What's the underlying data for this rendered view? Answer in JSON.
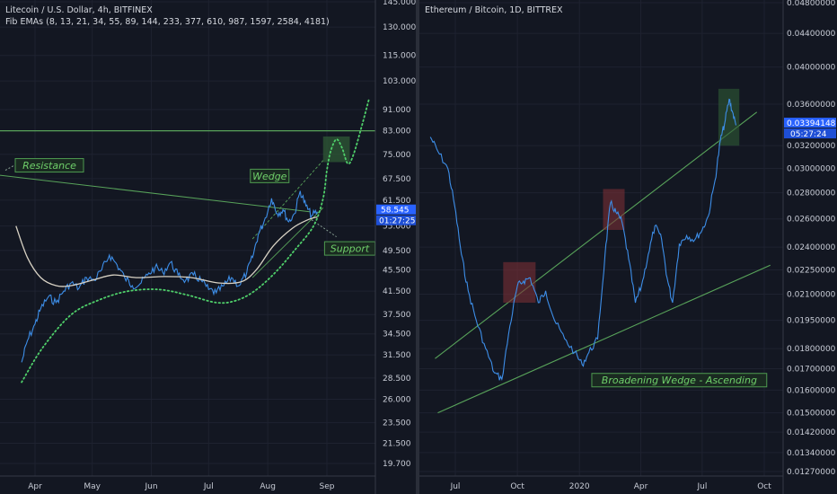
{
  "chart_data": [
    {
      "type": "line",
      "title": "Litecoin / U.S. Dollar, 4h, BITFINEX",
      "subtitle": "Fib EMAs (8, 13, 21, 34, 55, 89, 144, 233, 377, 610, 987, 1597, 2584, 4181)",
      "x_ticks": [
        "Apr",
        "May",
        "Jun",
        "Jul",
        "Aug",
        "Sep"
      ],
      "y_ticks": [
        "145.000",
        "130.000",
        "115.000",
        "103.000",
        "91.000",
        "83.000",
        "75.000",
        "67.500",
        "61.500",
        "55.000",
        "49.500",
        "45.500",
        "41.500",
        "37.500",
        "34.500",
        "31.500",
        "28.500",
        "26.000",
        "23.500",
        "21.500",
        "19.700"
      ],
      "y_scale": "log",
      "price_tag": {
        "value": "58.545",
        "countdown": "01:27:25"
      },
      "annotations": [
        "Resistance",
        "Wedge",
        "Support"
      ],
      "series": [
        {
          "type": "price",
          "color": "#3d8ee8",
          "points": [
            [
              "Mar 25",
              30.5
            ],
            [
              "Mar 28",
              33.5
            ],
            [
              "Apr 1",
              36
            ],
            [
              "Apr 4",
              38.5
            ],
            [
              "Apr 8",
              40.5
            ],
            [
              "Apr 12",
              39.5
            ],
            [
              "Apr 16",
              41.5
            ],
            [
              "Apr 20",
              43
            ],
            [
              "Apr 24",
              42
            ],
            [
              "Apr 28",
              44
            ],
            [
              "May 2",
              43.5
            ],
            [
              "May 6",
              45.5
            ],
            [
              "May 10",
              48.5
            ],
            [
              "May 14",
              46.5
            ],
            [
              "May 18",
              44
            ],
            [
              "May 22",
              42.5
            ],
            [
              "May 26",
              42.8
            ],
            [
              "May 30",
              44.5
            ],
            [
              "Jun 3",
              46
            ],
            [
              "Jun 7",
              45
            ],
            [
              "Jun 11",
              47
            ],
            [
              "Jun 15",
              44.5
            ],
            [
              "Jun 19",
              43.5
            ],
            [
              "Jun 23",
              44.5
            ],
            [
              "Jun 27",
              43.5
            ],
            [
              "Jul 1",
              41.8
            ],
            [
              "Jul 5",
              41.2
            ],
            [
              "Jul 9",
              42.5
            ],
            [
              "Jul 13",
              44
            ],
            [
              "Jul 17",
              42.5
            ],
            [
              "Jul 21",
              45
            ],
            [
              "Jul 24",
              48
            ],
            [
              "Jul 27",
              53
            ],
            [
              "Jul 30",
              56
            ],
            [
              "Aug 3",
              62
            ],
            [
              "Aug 6",
              58
            ],
            [
              "Aug 9",
              59
            ],
            [
              "Aug 12",
              56
            ],
            [
              "Aug 15",
              58
            ],
            [
              "Aug 18",
              64
            ],
            [
              "Aug 21",
              60
            ],
            [
              "Aug 24",
              57.5
            ],
            [
              "Aug 27",
              58.5
            ]
          ]
        },
        {
          "type": "ema",
          "color": "#d8d2c4",
          "points": [
            [
              "Mar 22",
              55
            ],
            [
              "Mar 28",
              48
            ],
            [
              "Apr 4",
              44
            ],
            [
              "Apr 12",
              42.5
            ],
            [
              "Apr 20",
              42.5
            ],
            [
              "May 1",
              43.5
            ],
            [
              "May 12",
              44.5
            ],
            [
              "May 24",
              44
            ],
            [
              "Jun 8",
              44.2
            ],
            [
              "Jun 22",
              44
            ],
            [
              "Jul 6",
              43
            ],
            [
              "Jul 18",
              43.2
            ],
            [
              "Jul 26",
              45.5
            ],
            [
              "Aug 4",
              50.5
            ],
            [
              "Aug 14",
              54.5
            ],
            [
              "Aug 22",
              56.5
            ],
            [
              "Aug 27",
              57.2
            ]
          ]
        },
        {
          "type": "ema",
          "color": "#4fcf6a",
          "style": "dotted",
          "points": [
            [
              "Mar 25",
              28
            ],
            [
              "Apr 5",
              32.5
            ],
            [
              "Apr 20",
              37.5
            ],
            [
              "May 5",
              40
            ],
            [
              "May 20",
              41.5
            ],
            [
              "Jun 5",
              41.8
            ],
            [
              "Jun 20",
              40.8
            ],
            [
              "Jul 5",
              39.5
            ],
            [
              "Jul 15",
              39.8
            ],
            [
              "Jul 25",
              41.5
            ],
            [
              "Aug 5",
              45
            ],
            [
              "Aug 15",
              49.5
            ],
            [
              "Aug 25",
              55
            ],
            [
              "Aug 30",
              62
            ],
            [
              "Sep 1",
              70
            ],
            [
              "Sep 3",
              76
            ],
            [
              "Sep 6",
              80
            ],
            [
              "Sep 9",
              77
            ],
            [
              "Sep 12",
              72
            ],
            [
              "Sep 15",
              75
            ],
            [
              "Sep 19",
              84
            ],
            [
              "Sep 23",
              95
            ]
          ]
        }
      ]
    },
    {
      "type": "line",
      "title": "Ethereum / Bitcoin, 1D, BITTREX",
      "x_ticks": [
        "Jul",
        "Oct",
        "2020",
        "Apr",
        "Jul",
        "Oct"
      ],
      "y_ticks": [
        "0.04800000",
        "0.04400000",
        "0.04000000",
        "0.03600000",
        "0.03200000",
        "0.03000000",
        "0.02800000",
        "0.02600000",
        "0.02400000",
        "0.02250000",
        "0.02100000",
        "0.01950000",
        "0.01800000",
        "0.01700000",
        "0.01600000",
        "0.01500000",
        "0.01420000",
        "0.01340000",
        "0.01270000"
      ],
      "y_scale": "log",
      "price_tag": {
        "value": "0.03394148",
        "countdown": "05:27:24"
      },
      "annotations": [
        "Broadening Wedge - Ascending"
      ],
      "series": [
        {
          "type": "price",
          "color": "#3d8ee8",
          "points": [
            [
              "2019-05-25",
              0.0328
            ],
            [
              "2019-06-05",
              0.0315
            ],
            [
              "2019-06-20",
              0.03
            ],
            [
              "2019-06-30",
              0.027
            ],
            [
              "2019-07-10",
              0.0235
            ],
            [
              "2019-07-20",
              0.0212
            ],
            [
              "2019-08-01",
              0.0195
            ],
            [
              "2019-08-15",
              0.018
            ],
            [
              "2019-08-28",
              0.0168
            ],
            [
              "2019-09-08",
              0.0165
            ],
            [
              "2019-09-20",
              0.0192
            ],
            [
              "2019-10-01",
              0.0215
            ],
            [
              "2019-10-10",
              0.0218
            ],
            [
              "2019-10-20",
              0.022
            ],
            [
              "2019-11-01",
              0.0205
            ],
            [
              "2019-11-12",
              0.0212
            ],
            [
              "2019-11-25",
              0.0195
            ],
            [
              "2019-12-10",
              0.0185
            ],
            [
              "2019-12-25",
              0.0178
            ],
            [
              "2020-01-05",
              0.0172
            ],
            [
              "2020-01-15",
              0.0178
            ],
            [
              "2020-01-28",
              0.0185
            ],
            [
              "2020-02-08",
              0.0235
            ],
            [
              "2020-02-16",
              0.0272
            ],
            [
              "2020-02-24",
              0.0265
            ],
            [
              "2020-03-04",
              0.0258
            ],
            [
              "2020-03-14",
              0.0232
            ],
            [
              "2020-03-24",
              0.0205
            ],
            [
              "2020-04-02",
              0.0215
            ],
            [
              "2020-04-12",
              0.0235
            ],
            [
              "2020-04-22",
              0.0255
            ],
            [
              "2020-05-02",
              0.0245
            ],
            [
              "2020-05-10",
              0.022
            ],
            [
              "2020-05-18",
              0.0205
            ],
            [
              "2020-05-28",
              0.0242
            ],
            [
              "2020-06-08",
              0.0248
            ],
            [
              "2020-06-20",
              0.0245
            ],
            [
              "2020-07-01",
              0.0252
            ],
            [
              "2020-07-10",
              0.0262
            ],
            [
              "2020-07-20",
              0.029
            ],
            [
              "2020-07-28",
              0.0325
            ],
            [
              "2020-08-03",
              0.034
            ],
            [
              "2020-08-10",
              0.0365
            ],
            [
              "2020-08-15",
              0.0352
            ],
            [
              "2020-08-20",
              0.0339
            ]
          ]
        }
      ]
    }
  ]
}
